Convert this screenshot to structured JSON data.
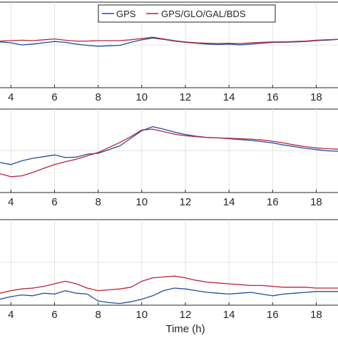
{
  "chart_data": [
    {
      "type": "line",
      "xlabel": "",
      "xlim": [
        3.5,
        19.0
      ],
      "ylim": [
        -1.0,
        1.0
      ],
      "grid": true,
      "x_ticks": [
        4,
        6,
        8,
        10,
        12,
        14,
        16,
        18
      ],
      "series": [
        {
          "name": "GPS",
          "color": "#1f4e9e",
          "x": [
            3.5,
            4.0,
            4.5,
            5.0,
            5.5,
            6.0,
            6.5,
            7.0,
            7.5,
            8.0,
            8.5,
            9.0,
            9.5,
            10.0,
            10.5,
            11.0,
            11.5,
            12.0,
            12.5,
            13.0,
            13.5,
            14.0,
            14.5,
            15.0,
            15.5,
            16.0,
            16.5,
            17.0,
            17.5,
            18.0,
            18.5,
            19.0
          ],
          "y": [
            0.07,
            0.05,
            0.0,
            0.02,
            0.05,
            0.08,
            0.06,
            0.02,
            -0.01,
            -0.03,
            -0.02,
            -0.01,
            0.06,
            0.12,
            0.16,
            0.13,
            0.09,
            0.06,
            0.04,
            0.02,
            0.01,
            0.02,
            0.0,
            0.02,
            0.04,
            0.06,
            0.06,
            0.07,
            0.08,
            0.1,
            0.11,
            0.13
          ]
        },
        {
          "name": "GPS/GLO/GAL/BDS",
          "color": "#b8243c",
          "x": [
            3.5,
            4.0,
            4.5,
            5.0,
            5.5,
            6.0,
            6.5,
            7.0,
            7.5,
            8.0,
            8.5,
            9.0,
            9.5,
            10.0,
            10.5,
            11.0,
            11.5,
            12.0,
            12.5,
            13.0,
            13.5,
            14.0,
            14.5,
            15.0,
            15.5,
            16.0,
            16.5,
            17.0,
            17.5,
            18.0,
            18.5,
            19.0
          ],
          "y": [
            0.09,
            0.1,
            0.11,
            0.1,
            0.12,
            0.14,
            0.11,
            0.09,
            0.09,
            0.1,
            0.1,
            0.1,
            0.12,
            0.15,
            0.18,
            0.14,
            0.1,
            0.07,
            0.05,
            0.04,
            0.03,
            0.04,
            0.03,
            0.05,
            0.06,
            0.07,
            0.07,
            0.08,
            0.09,
            0.11,
            0.12,
            0.13
          ]
        }
      ]
    },
    {
      "type": "line",
      "xlabel": "",
      "xlim": [
        3.5,
        19.0
      ],
      "ylim": [
        -1.0,
        1.0
      ],
      "grid": true,
      "x_ticks": [
        4,
        6,
        8,
        10,
        12,
        14,
        16,
        18
      ],
      "series": [
        {
          "name": "GPS",
          "color": "#1f4e9e",
          "x": [
            3.5,
            4.0,
            4.5,
            5.0,
            5.5,
            6.0,
            6.5,
            7.0,
            7.5,
            8.0,
            8.5,
            9.0,
            9.5,
            10.0,
            10.5,
            11.0,
            11.5,
            12.0,
            12.5,
            13.0,
            13.5,
            14.0,
            14.5,
            15.0,
            15.5,
            16.0,
            16.5,
            17.0,
            17.5,
            18.0,
            18.5,
            19.0
          ],
          "y": [
            -0.28,
            -0.33,
            -0.24,
            -0.18,
            -0.14,
            -0.1,
            -0.16,
            -0.15,
            -0.08,
            -0.06,
            0.03,
            0.12,
            0.3,
            0.48,
            0.58,
            0.52,
            0.45,
            0.39,
            0.35,
            0.32,
            0.31,
            0.29,
            0.27,
            0.25,
            0.22,
            0.19,
            0.14,
            0.1,
            0.06,
            0.03,
            0.0,
            -0.01
          ]
        },
        {
          "name": "GPS/GLO/GAL/BDS",
          "color": "#b8243c",
          "x": [
            3.5,
            4.0,
            4.5,
            5.0,
            5.5,
            6.0,
            6.5,
            7.0,
            7.5,
            8.0,
            8.5,
            9.0,
            9.5,
            10.0,
            10.5,
            11.0,
            11.5,
            12.0,
            12.5,
            13.0,
            13.5,
            14.0,
            14.5,
            15.0,
            15.5,
            16.0,
            16.5,
            17.0,
            17.5,
            18.0,
            18.5,
            19.0
          ],
          "y": [
            -0.55,
            -0.62,
            -0.6,
            -0.52,
            -0.42,
            -0.33,
            -0.26,
            -0.2,
            -0.12,
            -0.04,
            0.08,
            0.2,
            0.34,
            0.5,
            0.52,
            0.46,
            0.4,
            0.36,
            0.34,
            0.32,
            0.31,
            0.3,
            0.29,
            0.28,
            0.26,
            0.23,
            0.19,
            0.14,
            0.1,
            0.07,
            0.05,
            0.04
          ]
        }
      ]
    },
    {
      "type": "line",
      "xlabel": "Time (h)",
      "xlim": [
        3.5,
        19.0
      ],
      "ylim": [
        -1.0,
        1.0
      ],
      "grid": true,
      "x_ticks": [
        4,
        6,
        8,
        10,
        12,
        14,
        16,
        18
      ],
      "series": [
        {
          "name": "GPS",
          "color": "#1f4e9e",
          "x": [
            3.5,
            4.0,
            4.5,
            5.0,
            5.5,
            6.0,
            6.5,
            7.0,
            7.5,
            8.0,
            8.5,
            9.0,
            9.5,
            10.0,
            10.5,
            11.0,
            11.5,
            12.0,
            12.5,
            13.0,
            13.5,
            14.0,
            14.5,
            15.0,
            15.5,
            16.0,
            16.5,
            17.0,
            17.5,
            18.0,
            18.5,
            19.0
          ],
          "y": [
            -0.86,
            -0.8,
            -0.76,
            -0.78,
            -0.72,
            -0.74,
            -0.66,
            -0.72,
            -0.74,
            -0.9,
            -0.94,
            -0.96,
            -0.92,
            -0.86,
            -0.78,
            -0.66,
            -0.6,
            -0.62,
            -0.66,
            -0.7,
            -0.72,
            -0.74,
            -0.72,
            -0.7,
            -0.74,
            -0.78,
            -0.74,
            -0.72,
            -0.7,
            -0.68,
            -0.68,
            -0.68
          ]
        },
        {
          "name": "GPS/GLO/GAL/BDS",
          "color": "#b8243c",
          "x": [
            3.5,
            4.0,
            4.5,
            5.0,
            5.5,
            6.0,
            6.5,
            7.0,
            7.5,
            8.0,
            8.5,
            9.0,
            9.5,
            10.0,
            10.5,
            11.0,
            11.5,
            12.0,
            12.5,
            13.0,
            13.5,
            14.0,
            14.5,
            15.0,
            15.5,
            16.0,
            16.5,
            17.0,
            17.5,
            18.0,
            18.5,
            19.0
          ],
          "y": [
            -0.72,
            -0.66,
            -0.62,
            -0.6,
            -0.56,
            -0.5,
            -0.44,
            -0.5,
            -0.6,
            -0.66,
            -0.64,
            -0.62,
            -0.58,
            -0.44,
            -0.36,
            -0.34,
            -0.32,
            -0.36,
            -0.42,
            -0.46,
            -0.48,
            -0.5,
            -0.52,
            -0.54,
            -0.54,
            -0.56,
            -0.58,
            -0.58,
            -0.58,
            -0.6,
            -0.6,
            -0.6
          ]
        }
      ]
    }
  ],
  "legend": {
    "entries": [
      {
        "label": "GPS",
        "color": "#1f4e9e"
      },
      {
        "label": "GPS/GLO/GAL/BDS",
        "color": "#b8243c"
      }
    ]
  }
}
